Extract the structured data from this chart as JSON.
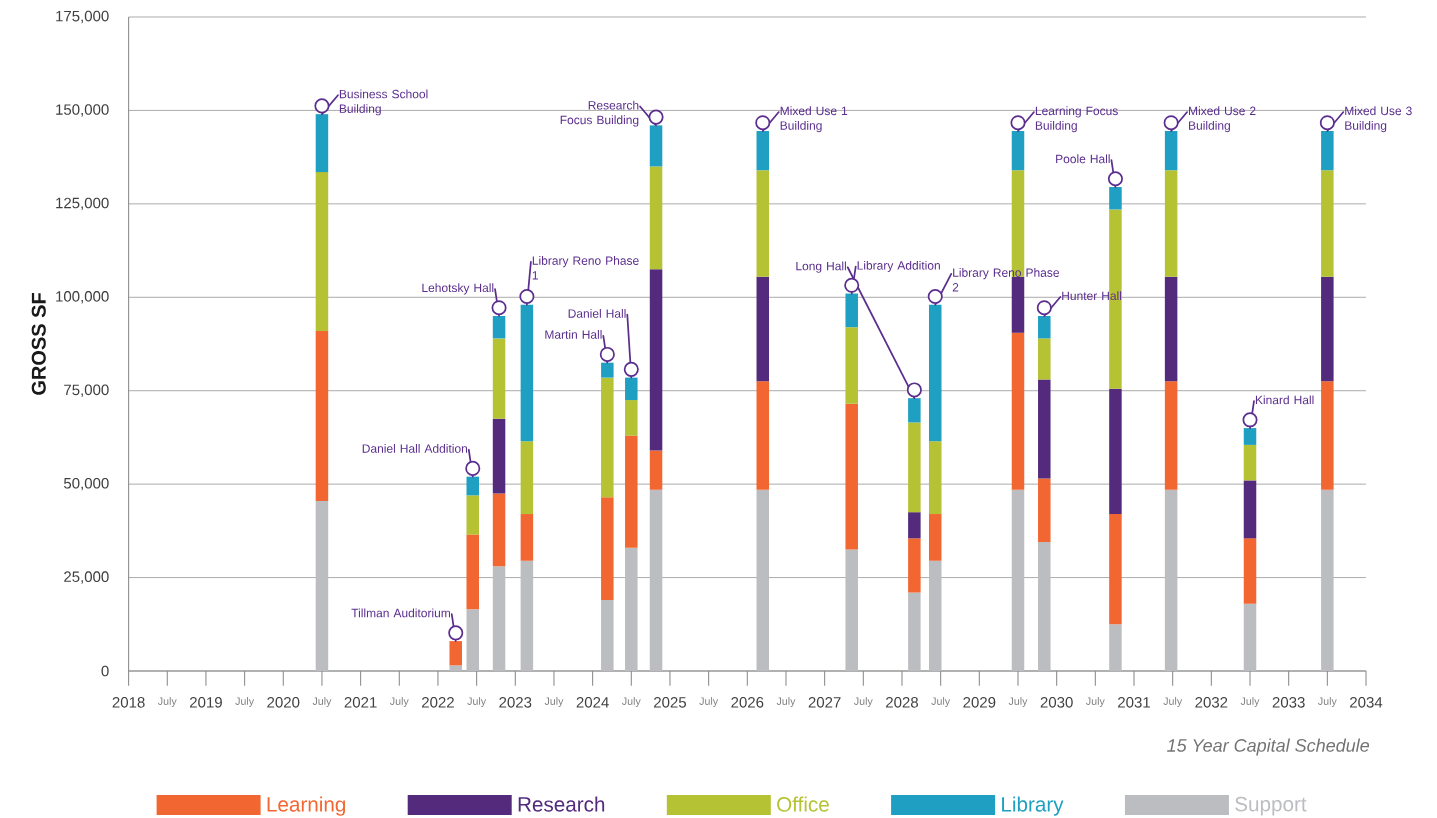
{
  "chart_data": {
    "type": "bar",
    "stacked": true,
    "ylabel": "GROSS SF",
    "x": [
      2020.5,
      2022.23,
      2022.45,
      2022.79,
      2023.15,
      2024.19,
      2024.5,
      2024.82,
      2026.2,
      2027.35,
      2028.16,
      2028.43,
      2029.5,
      2029.84,
      2030.76,
      2031.48,
      2032.5,
      2033.5
    ],
    "series": [
      {
        "name": "Support",
        "color": "#bcbdc0",
        "values": [
          45500,
          1500,
          16500,
          28000,
          29500,
          19000,
          33000,
          48500,
          48500,
          32500,
          21000,
          29500,
          48500,
          34500,
          12500,
          48500,
          18000,
          48500
        ]
      },
      {
        "name": "Learning",
        "color": "#f26631",
        "values": [
          45500,
          6500,
          20000,
          19500,
          12500,
          27500,
          30000,
          10500,
          29000,
          39000,
          14500,
          12500,
          42000,
          17000,
          29500,
          29000,
          17500,
          29000
        ]
      },
      {
        "name": "Research",
        "color": "#542a7d",
        "values": [
          0,
          0,
          0,
          20000,
          0,
          0,
          0,
          48500,
          28000,
          0,
          7000,
          0,
          15000,
          26500,
          33500,
          28000,
          15500,
          28000
        ]
      },
      {
        "name": "Office",
        "color": "#b5c234",
        "values": [
          42500,
          0,
          10500,
          21500,
          19500,
          32000,
          9500,
          27500,
          28500,
          20500,
          24000,
          19500,
          28500,
          11000,
          48000,
          28500,
          9500,
          28500
        ]
      },
      {
        "name": "Library",
        "color": "#1f9fc1",
        "values": [
          15500,
          0,
          5000,
          6000,
          36500,
          4000,
          6000,
          11000,
          10500,
          9000,
          6500,
          36500,
          10500,
          6000,
          6000,
          10500,
          4500,
          10500
        ]
      }
    ],
    "xlim": [
      2018,
      2034
    ],
    "xticks": [
      2018,
      {
        "value": 2018.5,
        "label": "July"
      },
      2019,
      {
        "value": 2019.5,
        "label": "July"
      },
      2020,
      {
        "value": 2020.5,
        "label": "July"
      },
      2021,
      {
        "value": 2021.5,
        "label": "July"
      },
      2022,
      {
        "value": 2022.5,
        "label": "July"
      },
      2023,
      {
        "value": 2023.5,
        "label": "July"
      },
      2024,
      {
        "value": 2024.5,
        "label": "July"
      },
      2025,
      {
        "value": 2025.5,
        "label": "July"
      },
      2026,
      {
        "value": 2026.5,
        "label": "July"
      },
      2027,
      {
        "value": 2027.5,
        "label": "July"
      },
      2028,
      {
        "value": 2028.5,
        "label": "July"
      },
      2029,
      {
        "value": 2029.5,
        "label": "July"
      },
      2030,
      {
        "value": 2030.5,
        "label": "July"
      },
      2031,
      {
        "value": 2031.5,
        "label": "July"
      },
      2032,
      {
        "value": 2032.5,
        "label": "July"
      },
      2033,
      {
        "value": 2033.5,
        "label": "July"
      },
      2034
    ],
    "ylim": [
      0,
      175000
    ],
    "yticks": [
      0,
      {
        "value": 25000,
        "label": "25,000"
      },
      {
        "value": 50000,
        "label": "50,000"
      },
      {
        "value": 75000,
        "label": "75,000"
      },
      {
        "value": 100000,
        "label": "100,000"
      },
      {
        "value": 125000,
        "label": "125,000"
      },
      {
        "value": 150000,
        "label": "150,000"
      },
      {
        "value": 175000,
        "label": "175,000"
      }
    ],
    "grid": "y",
    "legend": "bottom",
    "annotations": [
      {
        "text": "Business School Building",
        "x": 2020.5,
        "y": 149000
      },
      {
        "text": "Tillman Auditorium",
        "x": 2022.23,
        "y": 8000
      },
      {
        "text": "Daniel Hall Addition",
        "x": 2022.45,
        "y": 52000
      },
      {
        "text": "Lehotsky Hall",
        "x": 2022.79,
        "y": 95000
      },
      {
        "text": "Library Reno Phase 1",
        "x": 2023.15,
        "y": 98000
      },
      {
        "text": "Martin Hall",
        "x": 2024.19,
        "y": 82500
      },
      {
        "text": "Daniel Hall",
        "x": 2024.5,
        "y": 78500
      },
      {
        "text": "Research Focus Building",
        "x": 2024.82,
        "y": 146000
      },
      {
        "text": "Mixed Use 1 Building",
        "x": 2026.2,
        "y": 144500
      },
      {
        "text": "Library Addition",
        "x": 2027.35,
        "y": 101000
      },
      {
        "text": "Long Hall",
        "x": 2028.16,
        "y": 73000
      },
      {
        "text": "Library Reno Phase 2",
        "x": 2028.43,
        "y": 98000
      },
      {
        "text": "Learning Focus Building",
        "x": 2029.5,
        "y": 144500
      },
      {
        "text": "Hunter Hall",
        "x": 2029.84,
        "y": 95000
      },
      {
        "text": "Poole Hall",
        "x": 2030.76,
        "y": 129500
      },
      {
        "text": "Mixed Use 2 Building",
        "x": 2031.48,
        "y": 144500
      },
      {
        "text": "Kinard Hall",
        "x": 2032.5,
        "y": 65000
      },
      {
        "text": "Mixed Use 3 Building",
        "x": 2033.5,
        "y": 144500
      },
      "15 Year Capital Schedule"
    ]
  }
}
